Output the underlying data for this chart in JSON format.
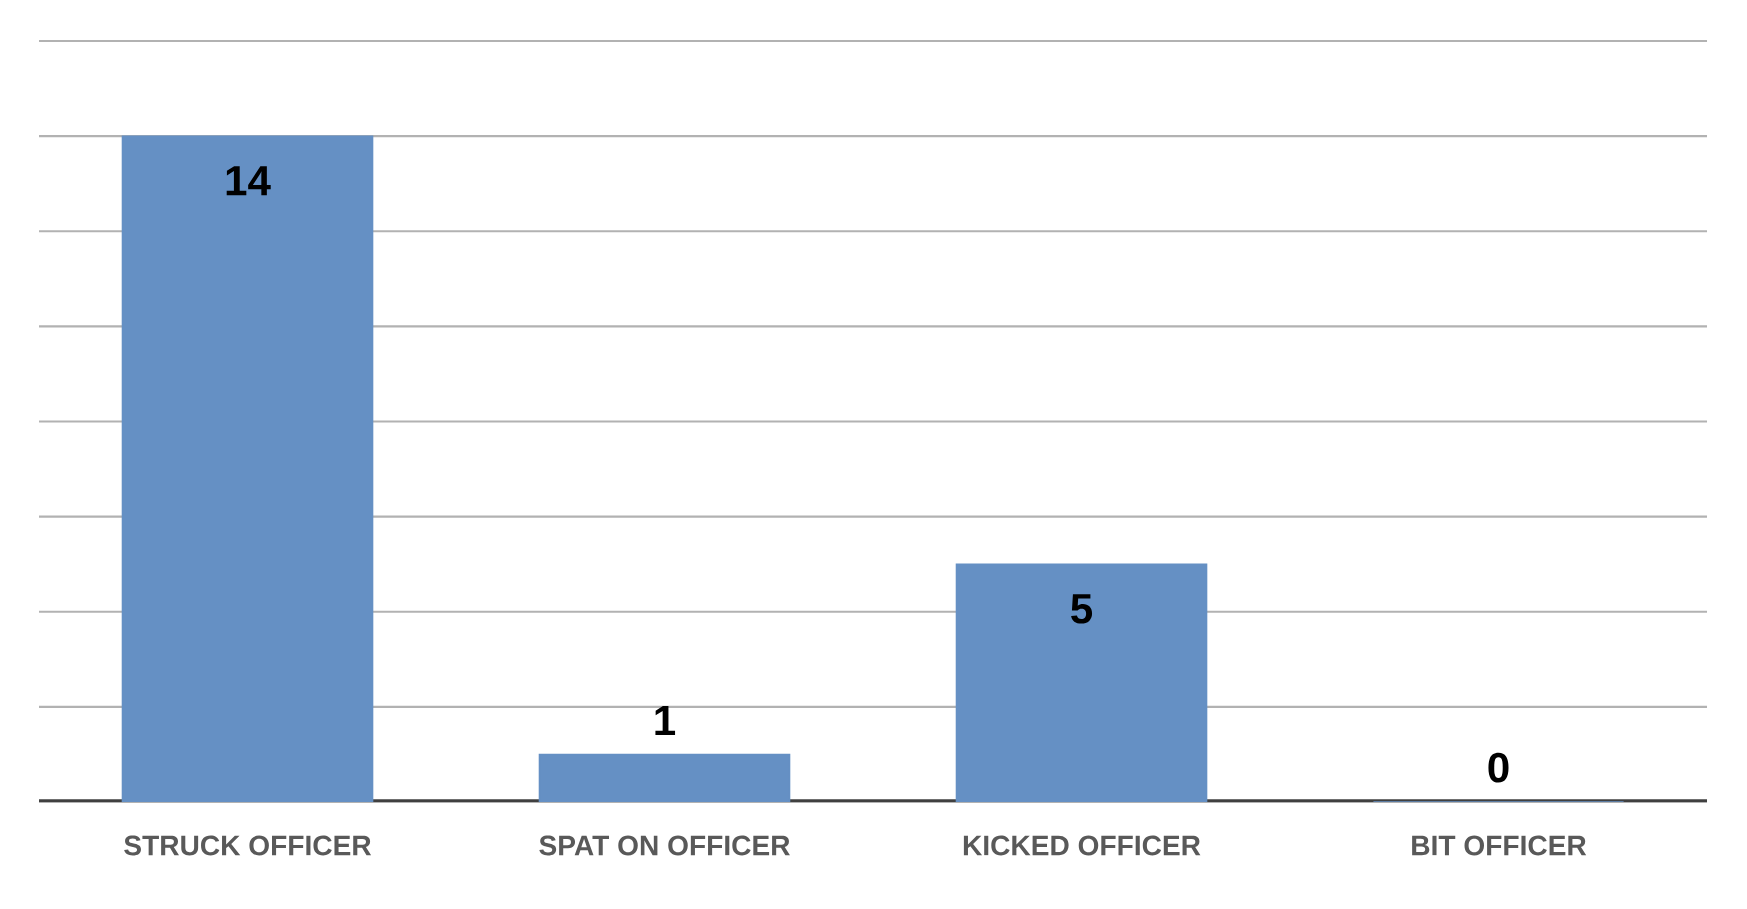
{
  "chart_data": {
    "type": "bar",
    "categories": [
      "STRUCK OFFICER",
      "SPAT ON OFFICER",
      "KICKED OFFICER",
      "BIT OFFICER"
    ],
    "values": [
      14,
      1,
      5,
      0
    ],
    "color": "#6590c4",
    "data_labels": true,
    "ylim": [
      0,
      16
    ],
    "yticks": [
      {
        "value": 0,
        "label": null
      },
      {
        "value": 2,
        "label": null
      },
      {
        "value": 4,
        "label": null
      },
      {
        "value": 6,
        "label": null
      },
      {
        "value": 8,
        "label": null
      },
      {
        "value": 10,
        "label": null
      },
      {
        "value": 12,
        "label": null
      },
      {
        "value": 14,
        "label": null
      },
      {
        "value": 16,
        "label": null
      }
    ],
    "grid": "y",
    "tick_labels": "x"
  }
}
